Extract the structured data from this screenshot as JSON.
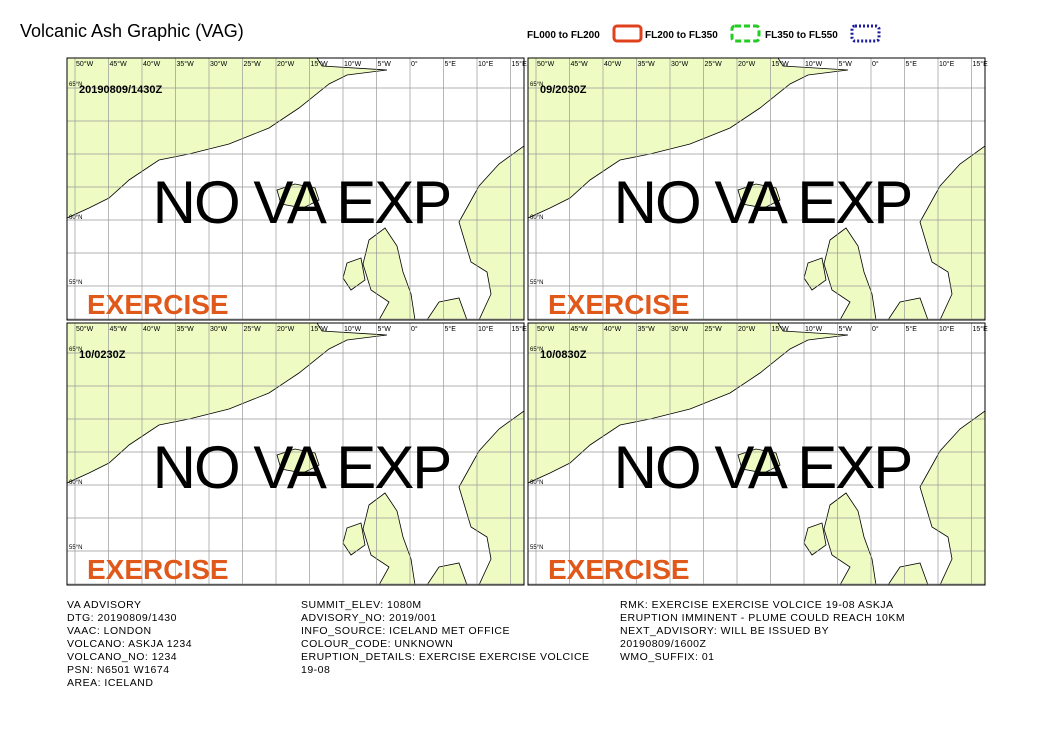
{
  "title": "Volcanic Ash Graphic (VAG)",
  "legend": [
    {
      "label": "FL000 to FL200",
      "color": "#e0401c",
      "style": "solid"
    },
    {
      "label": "FL200 to FL350",
      "color": "#22cc22",
      "style": "dashed"
    },
    {
      "label": "FL350 to FL550",
      "color": "#1a1aa0",
      "style": "dotted"
    }
  ],
  "lon_labels": [
    "50°W",
    "45°W",
    "40°W",
    "35°W",
    "30°W",
    "25°W",
    "20°W",
    "15°W",
    "10°W",
    "5°W",
    "0°",
    "5°E",
    "10°E",
    "15°E"
  ],
  "lat_labels": [
    "65°N",
    "60°N",
    "55°N"
  ],
  "panels": [
    {
      "time": "20190809/1430Z",
      "status": "NO VA EXP",
      "watermark": "EXERCISE"
    },
    {
      "time": "09/2030Z",
      "status": "NO VA EXP",
      "watermark": "EXERCISE"
    },
    {
      "time": "10/0230Z",
      "status": "NO VA EXP",
      "watermark": "EXERCISE"
    },
    {
      "time": "10/0830Z",
      "status": "NO VA EXP",
      "watermark": "EXERCISE"
    }
  ],
  "footer": [
    [
      "VA ADVISORY",
      "DTG: 20190809/1430",
      "VAAC: LONDON",
      "VOLCANO: ASKJA 1234",
      "VOLCANO_NO: 1234",
      "PSN: N6501 W1674",
      "AREA: ICELAND"
    ],
    [
      "SUMMIT_ELEV: 1080M",
      "ADVISORY_NO: 2019/001",
      "INFO_SOURCE: ICELAND MET OFFICE",
      "COLOUR_CODE: UNKNOWN",
      "ERUPTION_DETAILS: EXERCISE EXERCISE VOLCICE",
      "19-08"
    ],
    [
      "RMK: EXERCISE EXERCISE VOLCICE 19-08 ASKJA",
      "ERUPTION IMMINENT - PLUME COULD REACH 10KM",
      "NEXT_ADVISORY: WILL BE ISSUED BY",
      "20190809/1600Z",
      "WMO_SUFFIX: 01"
    ]
  ]
}
